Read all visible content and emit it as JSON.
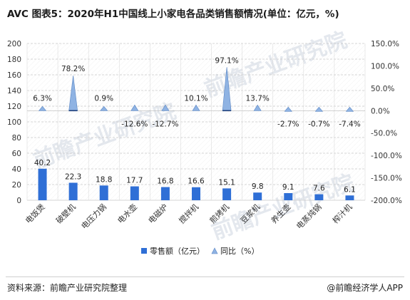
{
  "header": {
    "title": "AVC 图表5：2020年H1中国线上小家电各品类销售额情况(单位：亿元，%)"
  },
  "footer": {
    "source": "资料来源：前瞻产业研究院整理",
    "brand": "@前瞻经济学人APP"
  },
  "watermark": {
    "text": "前瞻产业研究院"
  },
  "colors": {
    "bar": "#2f6fd6",
    "ratio": "#8fb3e3",
    "ratio_dark": "#5a86c4",
    "grid": "#c8c8c8"
  },
  "chart_data": {
    "type": "bar",
    "categories": [
      "电饭煲",
      "破壁机",
      "电压力锅",
      "电水壶",
      "电磁炉",
      "搅拌机",
      "煎烤机",
      "豆浆机",
      "养生壶",
      "电蒸炖锅",
      "榨汁机"
    ],
    "series": [
      {
        "name": "零售额（亿元）",
        "axis": "left",
        "type": "bar",
        "values": [
          40.2,
          22.3,
          18.8,
          17.7,
          16.8,
          16.6,
          15.1,
          9.8,
          9.1,
          7.6,
          6.1
        ],
        "labels": [
          "40.2",
          "22.3",
          "18.8",
          "17.7",
          "16.8",
          "16.6",
          "15.1",
          "9.8",
          "9.1",
          "7.6",
          "6.1"
        ]
      },
      {
        "name": "同比（%）",
        "axis": "right",
        "type": "triangle",
        "values": [
          6.3,
          78.2,
          0.9,
          -12.6,
          -12.7,
          10.1,
          97.1,
          13.7,
          -2.7,
          -0.7,
          -7.4
        ],
        "labels": [
          "6.3%",
          "78.2%",
          "0.9%",
          "-12.6%",
          "-12.7%",
          "10.1%",
          "97.1%",
          "13.7%",
          "-2.7%",
          "-0.7%",
          "-7.4%"
        ]
      }
    ],
    "y_left": {
      "min": 0,
      "max": 200,
      "step": 20,
      "ticks": [
        "0",
        "20",
        "40",
        "60",
        "80",
        "100",
        "120",
        "140",
        "160",
        "180",
        "200"
      ]
    },
    "y_right": {
      "min": -200,
      "max": 150,
      "step": 50,
      "ticks": [
        "-200.0%",
        "-150.0%",
        "-100.0%",
        "-50.0%",
        "0.0%",
        "50.0%",
        "100.0%",
        "150.0%"
      ]
    },
    "legend": {
      "position": "bottom"
    },
    "grid": true
  }
}
